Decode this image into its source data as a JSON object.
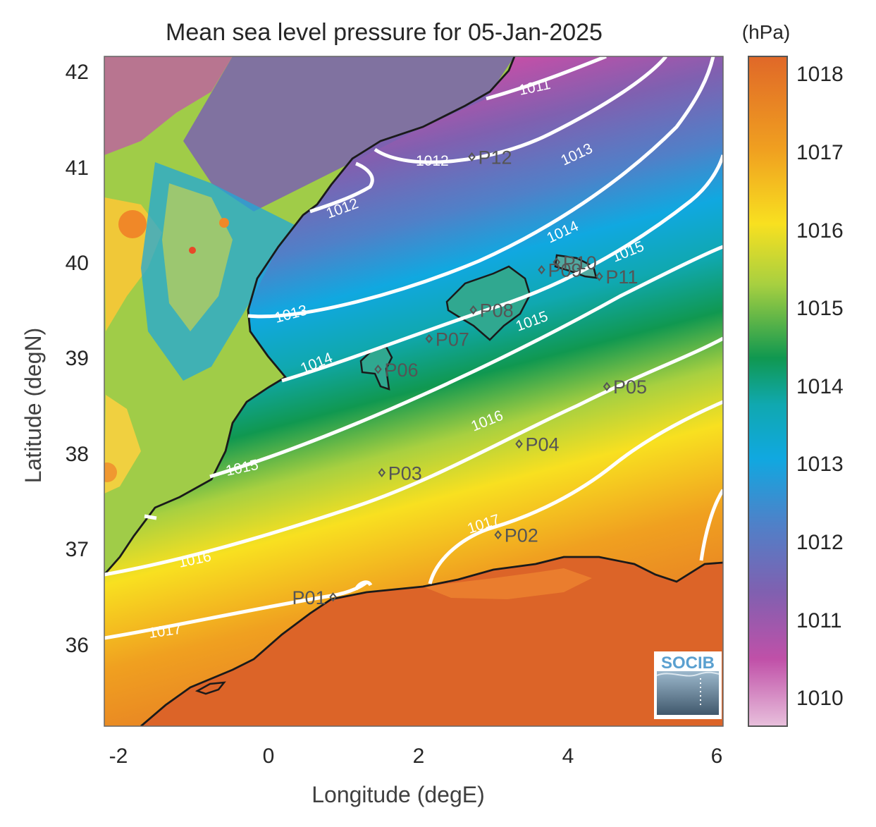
{
  "title": "Mean sea level pressure for 05-Jan-2025",
  "xlabel": "Longitude (degE)",
  "ylabel": "Latitude (degN)",
  "colorbar": {
    "unit": "(hPa)",
    "ticks": [
      "1018",
      "1017",
      "1016",
      "1015",
      "1014",
      "1013",
      "1012",
      "1011",
      "1010"
    ],
    "range": [
      1009.6,
      1018.2
    ],
    "colors": [
      "#e8c0dc",
      "#c050a8",
      "#8060b0",
      "#5080c8",
      "#10a8e0",
      "#10a8b0",
      "#109850",
      "#a8d040",
      "#f8e020",
      "#f0a020",
      "#e06828"
    ]
  },
  "x_ticks": [
    "-2",
    "0",
    "2",
    "4",
    "6"
  ],
  "y_ticks": [
    "42",
    "41",
    "40",
    "39",
    "38",
    "37",
    "36"
  ],
  "map": {
    "lon_range": [
      -2.2,
      6.05
    ],
    "lat_range": [
      35.15,
      42.15
    ],
    "land_colors": {
      "iberia_inland": "#9ccc40",
      "iberia_high": "#f0c030",
      "africa": "#dc6428"
    }
  },
  "contours": [
    {
      "level": 1011,
      "label": "1011"
    },
    {
      "level": 1012,
      "label": "1012"
    },
    {
      "level": 1013,
      "label": "1013"
    },
    {
      "level": 1014,
      "label": "1014"
    },
    {
      "level": 1015,
      "label": "1015"
    },
    {
      "level": 1016,
      "label": "1016"
    },
    {
      "level": 1017,
      "label": "1017"
    }
  ],
  "contour_labels": [
    {
      "text": "1011"
    },
    {
      "text": "1012"
    },
    {
      "text": "1012"
    },
    {
      "text": "1013"
    },
    {
      "text": "1013"
    },
    {
      "text": "1014"
    },
    {
      "text": "1014"
    },
    {
      "text": "1015"
    },
    {
      "text": "1015"
    },
    {
      "text": "1015"
    },
    {
      "text": "1016"
    },
    {
      "text": "1016"
    },
    {
      "text": "1017"
    },
    {
      "text": "1017"
    }
  ],
  "stations": [
    {
      "id": "P01",
      "lon": 0.85,
      "lat": 36.5
    },
    {
      "id": "P02",
      "lon": 3.05,
      "lat": 37.15
    },
    {
      "id": "P03",
      "lon": 1.5,
      "lat": 37.8
    },
    {
      "id": "P04",
      "lon": 3.33,
      "lat": 38.1
    },
    {
      "id": "P05",
      "lon": 4.5,
      "lat": 38.7
    },
    {
      "id": "P06",
      "lon": 1.45,
      "lat": 38.88
    },
    {
      "id": "P07",
      "lon": 2.13,
      "lat": 39.2
    },
    {
      "id": "P08",
      "lon": 2.72,
      "lat": 39.5
    },
    {
      "id": "P09",
      "lon": 3.63,
      "lat": 39.92
    },
    {
      "id": "P10",
      "lon": 3.83,
      "lat": 40.0
    },
    {
      "id": "P11",
      "lon": 4.4,
      "lat": 39.85
    },
    {
      "id": "P12",
      "lon": 2.7,
      "lat": 41.1
    }
  ],
  "logo": {
    "text": "SOCIB"
  }
}
